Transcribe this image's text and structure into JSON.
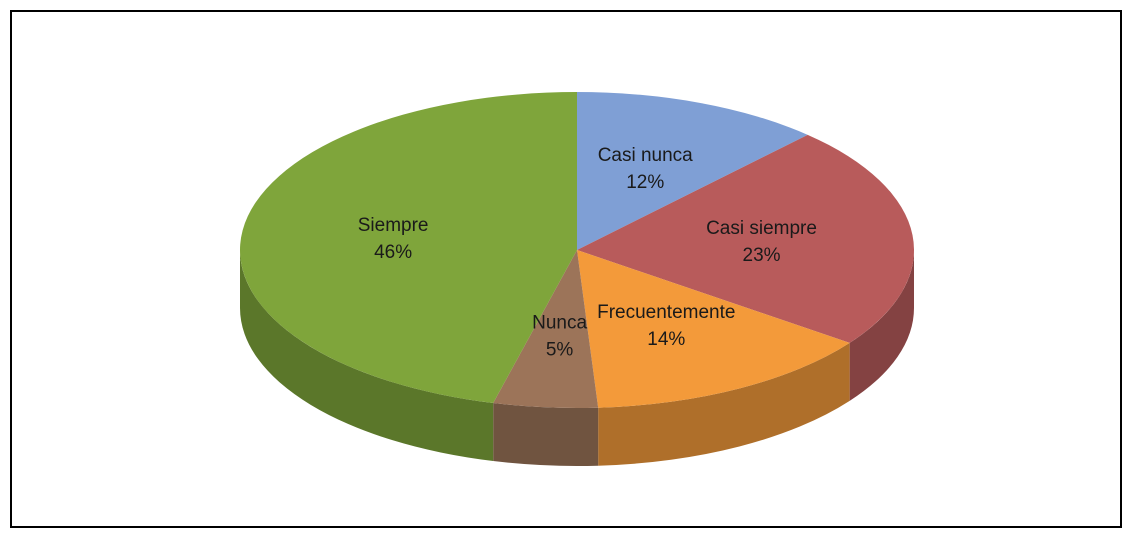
{
  "chart_data": {
    "type": "pie",
    "categories": [
      "Casi nunca",
      "Casi siempre",
      "Frecuentemente",
      "Nunca",
      "Siempre"
    ],
    "values": [
      12,
      23,
      14,
      5,
      46
    ],
    "value_labels": [
      "12%",
      "23%",
      "14%",
      "5%",
      "46%"
    ],
    "colors": [
      "#7f9fd5",
      "#b85b5b",
      "#f39a3a",
      "#9c7459",
      "#7fa53b"
    ]
  }
}
